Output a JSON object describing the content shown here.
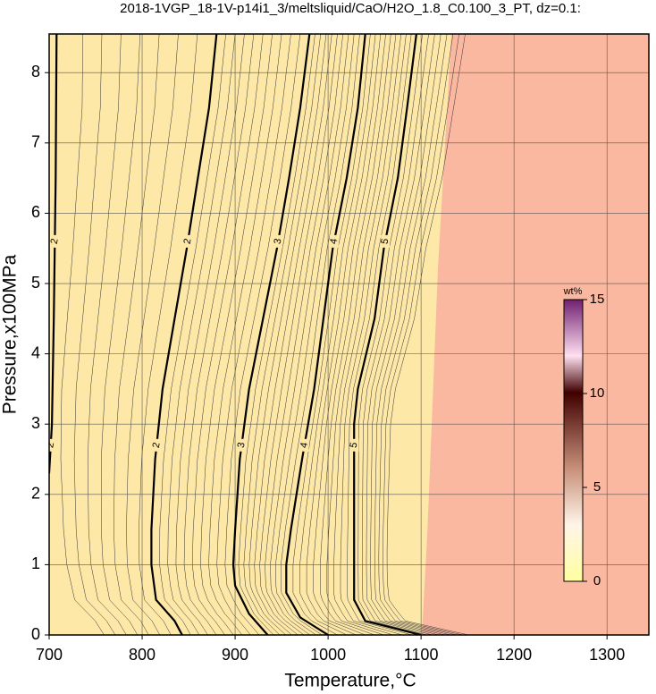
{
  "chart_data": {
    "type": "contour",
    "title": "2018-1VGP_18-1V-p14i1_3/meltsliquid/CaO/H2O_1.8_C0.100_3_PT, dz=0.1:",
    "x_label": "Temperature,°C",
    "y_label": "Pressure,x100MPa",
    "xlim": [
      700,
      1345
    ],
    "ylim": [
      0,
      8.55
    ],
    "xticks": [
      700,
      800,
      900,
      1000,
      1100,
      1200,
      1300
    ],
    "yticks": [
      0,
      1,
      2,
      3,
      4,
      5,
      6,
      7,
      8
    ],
    "grid": true,
    "contours": [
      {
        "level": 2,
        "x": [
          700,
          703,
          705,
          707,
          708
        ],
        "y": [
          2.3,
          3,
          4.5,
          6.5,
          8.55
        ]
      },
      {
        "level": 2,
        "x": [
          843,
          835,
          815,
          810,
          810,
          814,
          822,
          835,
          848,
          860,
          872,
          880
        ],
        "y": [
          0,
          0.2,
          0.5,
          1,
          1.5,
          2.5,
          3.5,
          4.5,
          5.5,
          6.5,
          7.5,
          8.55
        ]
      },
      {
        "level": 3,
        "x": [
          935,
          915,
          900,
          898,
          900,
          905,
          915,
          930,
          945,
          958,
          970,
          980
        ],
        "y": [
          0,
          0.3,
          0.7,
          1,
          1.5,
          2.5,
          3.5,
          4.5,
          5.5,
          6.5,
          7.5,
          8.55
        ]
      },
      {
        "level": 4,
        "x": [
          1000,
          970,
          955,
          955,
          960,
          972,
          985,
          995,
          1005,
          1020,
          1032,
          1040
        ],
        "y": [
          0,
          0.25,
          0.6,
          1,
          1.5,
          2.5,
          3.5,
          4.5,
          5.5,
          6.5,
          7.5,
          8.55
        ]
      },
      {
        "level": 5,
        "x": [
          1100,
          1040,
          1028,
          1028,
          1028,
          1028,
          1032,
          1050,
          1060,
          1075,
          1085,
          1095
        ],
        "y": [
          0,
          0.2,
          0.5,
          1,
          2,
          3,
          3.5,
          4.5,
          5.5,
          6.5,
          7.5,
          8.55
        ]
      }
    ],
    "colorbar": {
      "label": "wt%",
      "lim": [
        0,
        15
      ],
      "ticks": [
        0,
        5,
        10,
        15
      ]
    }
  }
}
